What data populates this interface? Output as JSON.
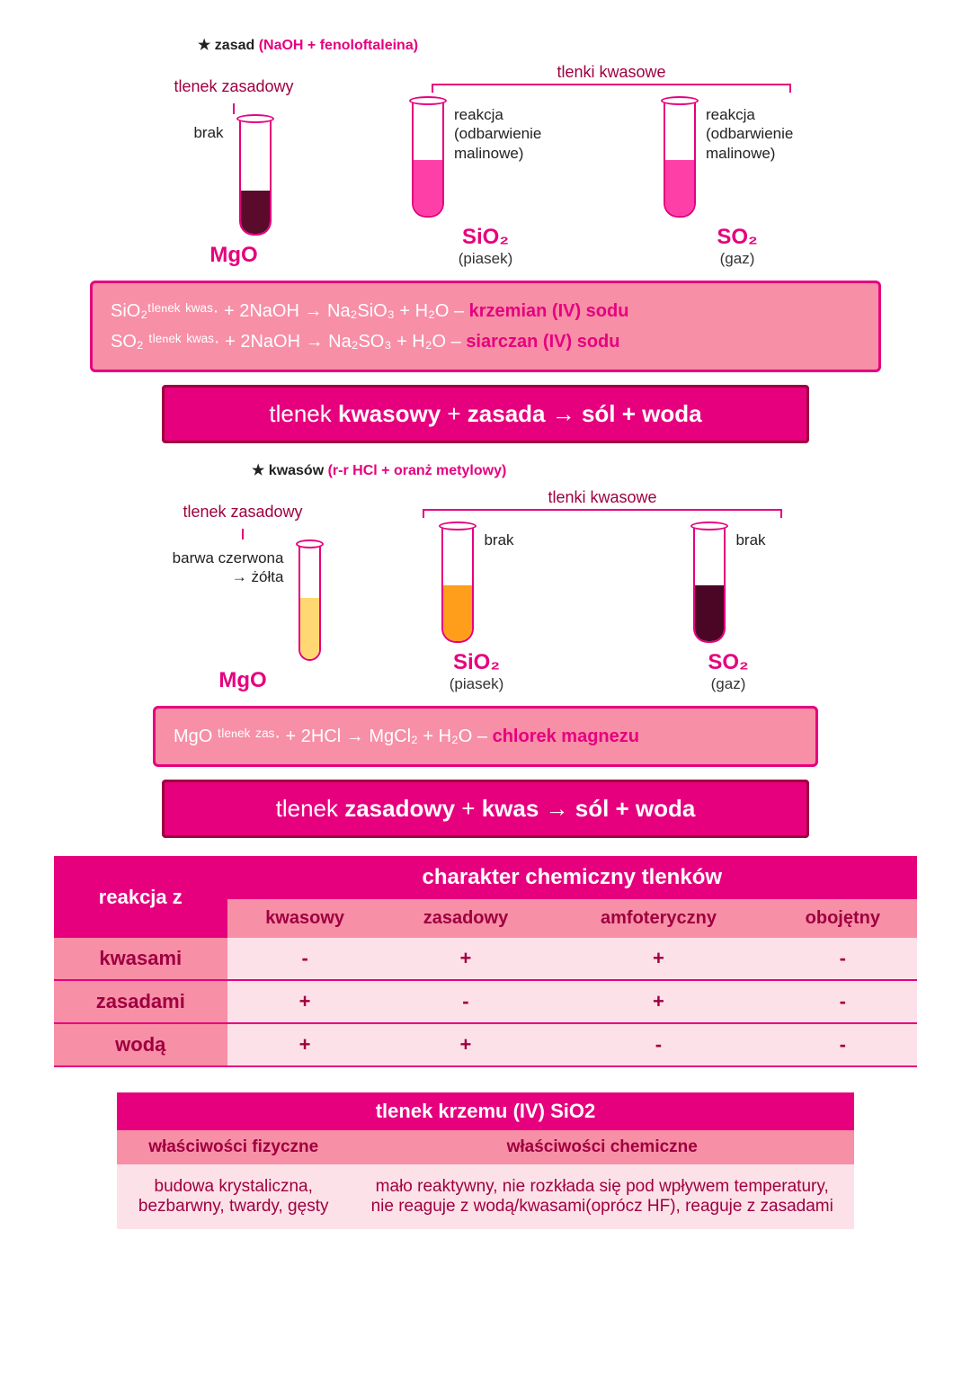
{
  "colors": {
    "magenta": "#e6007e",
    "dark": "#9f003f",
    "lightpink": "#f78fa7",
    "palepink": "#fde1e9"
  },
  "section1": {
    "star_prefix": "★ zasad ",
    "star_accent": "(NaOH + fenoloftaleina)",
    "left_group_label": "tlenek zasadowy",
    "right_group_label": "tlenki kwasowe",
    "tubes": [
      {
        "side_text": "brak",
        "side_pos": "left",
        "fill_color": "#5a0a2a",
        "fill_height": 48,
        "formula": "MgO",
        "note": ""
      },
      {
        "side_text": "reakcja (odbarwienie malinowe)",
        "side_pos": "right",
        "fill_color": "#ff3fa8",
        "fill_height": 62,
        "formula": "SiO₂",
        "note": "(piasek)"
      },
      {
        "side_text": "reakcja (odbarwienie malinowe)",
        "side_pos": "right",
        "fill_color": "#ff3fa8",
        "fill_height": 62,
        "formula": "SO₂",
        "note": "(gaz)"
      }
    ],
    "box_lines": [
      {
        "text": "SiO₂ᵗˡᵉⁿᵉᵏ ᵏʷᵃˢ· + 2NaOH → Na₂SiO₃ + H₂O – ",
        "hl": "krzemian (IV) sodu"
      },
      {
        "text": "SO₂ ᵗˡᵉⁿᵉᵏ ᵏʷᵃˢ· + 2NaOH → Na₂SO₃ + H₂O – ",
        "hl": "siarczan (IV) sodu"
      }
    ],
    "banner_plain1": "tlenek ",
    "banner_bold1": "kwasowy",
    "banner_plain2": " + ",
    "banner_bold2": "zasada → sól + woda"
  },
  "section2": {
    "star_prefix": "★ kwasów ",
    "star_accent": "(r-r HCl + oranż metylowy)",
    "left_group_label": "tlenek zasadowy",
    "right_group_label": "tlenki kwasowe",
    "left_note": "barwa czerwona → żółta",
    "tubes": [
      {
        "side_text": "",
        "side_pos": "left",
        "fill_color": "#ffd873",
        "fill_height": 68,
        "formula": "MgO",
        "note": ""
      },
      {
        "side_text": "brak",
        "side_pos": "right",
        "fill_color": "#ff9e1a",
        "fill_height": 62,
        "formula": "SiO₂",
        "note": "(piasek)"
      },
      {
        "side_text": "brak",
        "side_pos": "right",
        "fill_color": "#4a0624",
        "fill_height": 62,
        "formula": "SO₂",
        "note": "(gaz)"
      }
    ],
    "box_lines": [
      {
        "text": "MgO ᵗˡᵉⁿᵉᵏ ᶻᵃˢ· + 2HCl → MgCl₂ + H₂O – ",
        "hl": "chlorek magnezu"
      }
    ],
    "banner_plain1": "tlenek ",
    "banner_bold1": "zasadowy",
    "banner_plain2": " + ",
    "banner_bold2": "kwas → sól + woda"
  },
  "table1": {
    "corner": "reakcja z",
    "title": "charakter chemiczny tlenków",
    "cols": [
      "kwasowy",
      "zasadowy",
      "amfoteryczny",
      "obojętny"
    ],
    "rows": [
      {
        "head": "kwasami",
        "cells": [
          "-",
          "+",
          "+",
          "-"
        ]
      },
      {
        "head": "zasadami",
        "cells": [
          "+",
          "-",
          "+",
          "-"
        ]
      },
      {
        "head": "wodą",
        "cells": [
          "+",
          "+",
          "-",
          "-"
        ]
      }
    ]
  },
  "table2": {
    "title": "tlenek krzemu (IV) SiO2",
    "col1_head": "właściwości fizyczne",
    "col2_head": "właściwości chemiczne",
    "col1_body": "budowa krystaliczna, bezbarwny, twardy, gęsty",
    "col2_body": "mało reaktywny, nie rozkłada się pod wpływem temperatury, nie reaguje z wodą/kwasami(oprócz HF), reaguje z zasadami"
  }
}
